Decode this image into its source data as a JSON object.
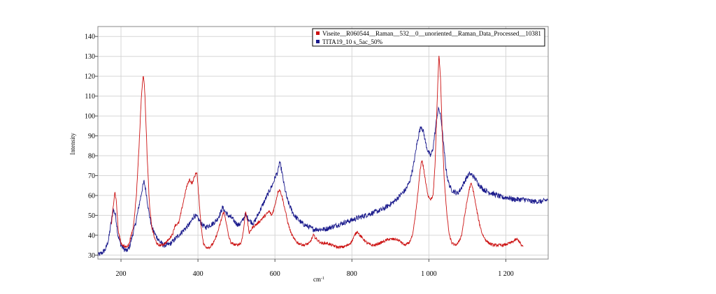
{
  "chart_data": {
    "type": "line",
    "title": "",
    "xlabel": "cm",
    "xlabel_superscript": "-1",
    "ylabel": "Intensity",
    "xlim": [
      140,
      1310
    ],
    "ylim": [
      28,
      145
    ],
    "x_ticks": [
      200,
      400,
      600,
      800,
      1000,
      1200
    ],
    "x_tick_labels": [
      "200",
      "400",
      "600",
      "800",
      "1 000",
      "1 200"
    ],
    "y_ticks": [
      30,
      40,
      50,
      60,
      70,
      80,
      90,
      100,
      110,
      120,
      130,
      140
    ],
    "y_tick_labels": [
      "30",
      "40",
      "50",
      "60",
      "70",
      "80",
      "90",
      "100",
      "110",
      "120",
      "130",
      "140"
    ],
    "grid": true,
    "legend_position": "top-right",
    "series": [
      {
        "name": "Viseite__R060544__Raman__532__0__unoriented__Raman_Data_Processed__10381",
        "color": "#cc1111",
        "x_range": [
          175,
          1245
        ],
        "points": [
          [
            175,
            45
          ],
          [
            180,
            55
          ],
          [
            184,
            62
          ],
          [
            188,
            57
          ],
          [
            193,
            42
          ],
          [
            200,
            36
          ],
          [
            210,
            34
          ],
          [
            220,
            35
          ],
          [
            232,
            44
          ],
          [
            240,
            60
          ],
          [
            247,
            85
          ],
          [
            253,
            110
          ],
          [
            258,
            121
          ],
          [
            262,
            112
          ],
          [
            268,
            80
          ],
          [
            274,
            55
          ],
          [
            280,
            44
          ],
          [
            288,
            38
          ],
          [
            296,
            35
          ],
          [
            305,
            35
          ],
          [
            315,
            36
          ],
          [
            325,
            38
          ],
          [
            335,
            41
          ],
          [
            340,
            45
          ],
          [
            350,
            46
          ],
          [
            360,
            55
          ],
          [
            370,
            64
          ],
          [
            378,
            68
          ],
          [
            385,
            66
          ],
          [
            392,
            70
          ],
          [
            397,
            72
          ],
          [
            402,
            60
          ],
          [
            408,
            45
          ],
          [
            414,
            36
          ],
          [
            420,
            34
          ],
          [
            432,
            34
          ],
          [
            443,
            37
          ],
          [
            452,
            42
          ],
          [
            461,
            48
          ],
          [
            467,
            52
          ],
          [
            473,
            47
          ],
          [
            479,
            40
          ],
          [
            486,
            36
          ],
          [
            500,
            35
          ],
          [
            512,
            36
          ],
          [
            518,
            42
          ],
          [
            524,
            52
          ],
          [
            528,
            48
          ],
          [
            533,
            41
          ],
          [
            542,
            44
          ],
          [
            555,
            46
          ],
          [
            565,
            48
          ],
          [
            575,
            50
          ],
          [
            585,
            52
          ],
          [
            592,
            50
          ],
          [
            600,
            55
          ],
          [
            608,
            62
          ],
          [
            612,
            63
          ],
          [
            618,
            60
          ],
          [
            626,
            53
          ],
          [
            634,
            46
          ],
          [
            642,
            41
          ],
          [
            650,
            38
          ],
          [
            660,
            36
          ],
          [
            675,
            35
          ],
          [
            690,
            36
          ],
          [
            700,
            40
          ],
          [
            708,
            38
          ],
          [
            720,
            36
          ],
          [
            735,
            36
          ],
          [
            748,
            35
          ],
          [
            762,
            34
          ],
          [
            775,
            34
          ],
          [
            790,
            35
          ],
          [
            800,
            37
          ],
          [
            810,
            41
          ],
          [
            815,
            42
          ],
          [
            820,
            40
          ],
          [
            830,
            38
          ],
          [
            840,
            36
          ],
          [
            850,
            35
          ],
          [
            860,
            35
          ],
          [
            872,
            36
          ],
          [
            885,
            37
          ],
          [
            895,
            38
          ],
          [
            905,
            38
          ],
          [
            915,
            38
          ],
          [
            925,
            37
          ],
          [
            937,
            35
          ],
          [
            948,
            36
          ],
          [
            958,
            40
          ],
          [
            965,
            50
          ],
          [
            972,
            62
          ],
          [
            978,
            74
          ],
          [
            982,
            78
          ],
          [
            986,
            74
          ],
          [
            992,
            66
          ],
          [
            998,
            60
          ],
          [
            1005,
            58
          ],
          [
            1011,
            60
          ],
          [
            1016,
            75
          ],
          [
            1022,
            110
          ],
          [
            1026,
            131
          ],
          [
            1030,
            120
          ],
          [
            1035,
            90
          ],
          [
            1040,
            68
          ],
          [
            1046,
            52
          ],
          [
            1053,
            40
          ],
          [
            1060,
            36
          ],
          [
            1068,
            35
          ],
          [
            1076,
            36
          ],
          [
            1085,
            40
          ],
          [
            1093,
            50
          ],
          [
            1100,
            58
          ],
          [
            1106,
            64
          ],
          [
            1110,
            66
          ],
          [
            1116,
            62
          ],
          [
            1122,
            55
          ],
          [
            1130,
            47
          ],
          [
            1138,
            41
          ],
          [
            1146,
            38
          ],
          [
            1156,
            36
          ],
          [
            1168,
            35
          ],
          [
            1180,
            35
          ],
          [
            1195,
            35
          ],
          [
            1210,
            36
          ],
          [
            1220,
            37
          ],
          [
            1228,
            38
          ],
          [
            1235,
            37
          ],
          [
            1240,
            35
          ],
          [
            1245,
            34
          ]
        ]
      },
      {
        "name": "TITA19_10 s_5ac_50%",
        "color": "#1a1a8c",
        "x_range": [
          140,
          1310
        ],
        "points": [
          [
            140,
            30
          ],
          [
            150,
            31
          ],
          [
            160,
            33
          ],
          [
            168,
            38
          ],
          [
            174,
            46
          ],
          [
            180,
            53
          ],
          [
            186,
            50
          ],
          [
            192,
            40
          ],
          [
            200,
            35
          ],
          [
            208,
            33
          ],
          [
            215,
            32
          ],
          [
            222,
            34
          ],
          [
            230,
            40
          ],
          [
            238,
            46
          ],
          [
            244,
            52
          ],
          [
            250,
            58
          ],
          [
            256,
            64
          ],
          [
            260,
            67
          ],
          [
            265,
            62
          ],
          [
            272,
            52
          ],
          [
            280,
            44
          ],
          [
            290,
            40
          ],
          [
            300,
            37
          ],
          [
            310,
            35
          ],
          [
            320,
            35
          ],
          [
            330,
            36
          ],
          [
            340,
            38
          ],
          [
            350,
            40
          ],
          [
            360,
            42
          ],
          [
            370,
            44
          ],
          [
            380,
            46
          ],
          [
            390,
            50
          ],
          [
            398,
            49
          ],
          [
            405,
            47
          ],
          [
            412,
            45
          ],
          [
            420,
            44
          ],
          [
            430,
            45
          ],
          [
            440,
            46
          ],
          [
            450,
            48
          ],
          [
            458,
            51
          ],
          [
            464,
            54
          ],
          [
            470,
            52
          ],
          [
            478,
            50
          ],
          [
            486,
            49
          ],
          [
            495,
            47
          ],
          [
            505,
            45
          ],
          [
            515,
            47
          ],
          [
            522,
            50
          ],
          [
            528,
            49
          ],
          [
            536,
            47
          ],
          [
            545,
            46
          ],
          [
            555,
            50
          ],
          [
            565,
            54
          ],
          [
            575,
            58
          ],
          [
            585,
            62
          ],
          [
            595,
            66
          ],
          [
            602,
            70
          ],
          [
            608,
            72
          ],
          [
            612,
            77
          ],
          [
            617,
            73
          ],
          [
            624,
            65
          ],
          [
            632,
            58
          ],
          [
            640,
            54
          ],
          [
            650,
            50
          ],
          [
            660,
            48
          ],
          [
            670,
            46
          ],
          [
            680,
            45
          ],
          [
            690,
            44
          ],
          [
            700,
            43
          ],
          [
            710,
            43
          ],
          [
            720,
            43
          ],
          [
            730,
            43
          ],
          [
            745,
            44
          ],
          [
            760,
            45
          ],
          [
            775,
            46
          ],
          [
            790,
            47
          ],
          [
            805,
            48
          ],
          [
            820,
            49
          ],
          [
            835,
            50
          ],
          [
            850,
            51
          ],
          [
            865,
            52
          ],
          [
            880,
            53
          ],
          [
            895,
            55
          ],
          [
            910,
            57
          ],
          [
            925,
            60
          ],
          [
            940,
            63
          ],
          [
            950,
            67
          ],
          [
            960,
            75
          ],
          [
            968,
            85
          ],
          [
            975,
            92
          ],
          [
            980,
            95
          ],
          [
            986,
            92
          ],
          [
            992,
            86
          ],
          [
            998,
            82
          ],
          [
            1004,
            80
          ],
          [
            1010,
            83
          ],
          [
            1016,
            92
          ],
          [
            1021,
            100
          ],
          [
            1026,
            104
          ],
          [
            1032,
            98
          ],
          [
            1038,
            86
          ],
          [
            1044,
            74
          ],
          [
            1050,
            67
          ],
          [
            1058,
            63
          ],
          [
            1066,
            62
          ],
          [
            1074,
            61
          ],
          [
            1082,
            63
          ],
          [
            1090,
            66
          ],
          [
            1098,
            69
          ],
          [
            1106,
            71
          ],
          [
            1114,
            70
          ],
          [
            1122,
            68
          ],
          [
            1132,
            65
          ],
          [
            1142,
            63
          ],
          [
            1152,
            62
          ],
          [
            1165,
            61
          ],
          [
            1178,
            60
          ],
          [
            1190,
            59
          ],
          [
            1205,
            59
          ],
          [
            1220,
            58
          ],
          [
            1235,
            58
          ],
          [
            1250,
            58
          ],
          [
            1265,
            57
          ],
          [
            1280,
            57
          ],
          [
            1295,
            57
          ],
          [
            1310,
            58
          ]
        ]
      }
    ]
  }
}
